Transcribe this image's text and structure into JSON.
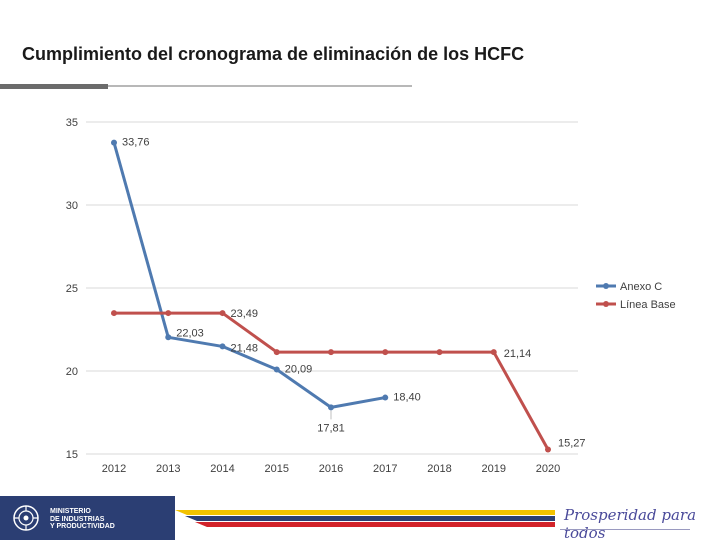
{
  "title": "Cumplimiento del cronograma de eliminación de los HCFC",
  "colors": {
    "anexo_c": "#4f7ab0",
    "linea_base": "#c0504d",
    "grid": "#d9d9d9",
    "footer_blue": "#2b3e73",
    "stripe_yellow": "#f2c200",
    "stripe_blue": "#2b3e73",
    "stripe_red": "#d2232a"
  },
  "chart_data": {
    "type": "line",
    "title": "",
    "xlabel": "",
    "ylabel": "",
    "categories": [
      "2012",
      "2013",
      "2014",
      "2015",
      "2016",
      "2017",
      "2018",
      "2019",
      "2020"
    ],
    "ylim": [
      15,
      35
    ],
    "yticks": [
      15,
      20,
      25,
      30,
      35
    ],
    "grid": true,
    "legend_position": "right",
    "series": [
      {
        "name": "Anexo C",
        "color": "#4f7ab0",
        "values": [
          33.76,
          22.03,
          21.48,
          20.09,
          17.81,
          18.4,
          null,
          null,
          null
        ],
        "labels": [
          "33,76",
          "22,03",
          "21,48",
          "20,09",
          "17,81",
          "18,40",
          null,
          null,
          null
        ]
      },
      {
        "name": "Línea Base",
        "color": "#c0504d",
        "values": [
          23.49,
          23.49,
          23.49,
          21.14,
          21.14,
          21.14,
          21.14,
          21.14,
          15.27
        ],
        "labels": [
          null,
          null,
          "23,49",
          null,
          null,
          null,
          null,
          "21,14",
          "15,27"
        ]
      }
    ]
  },
  "footer": {
    "ministry_lines": [
      "MINISTERIO",
      "DE INDUSTRIAS",
      "Y PRODUCTIVIDAD"
    ],
    "slogan": "Prosperidad para todos",
    "seal_icon": "ecuador-seal-icon"
  }
}
